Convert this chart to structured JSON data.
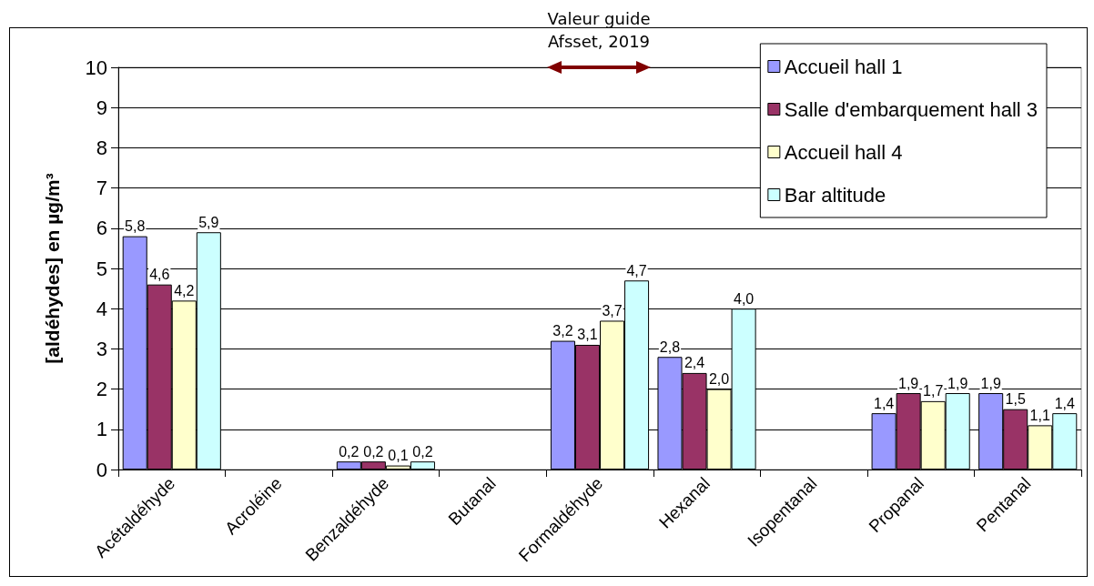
{
  "chart_data": {
    "type": "bar",
    "categories": [
      "Acétaldéhyde",
      "Acroléine",
      "Benzaldéhyde",
      "Butanal",
      "Formaldéhyde",
      "Hexanal",
      "Isopentanal",
      "Propanal",
      "Pentanal"
    ],
    "ylabel": "[aldéhydes] en µg/m³",
    "ylim": [
      0,
      10
    ],
    "yticks": [
      0,
      1,
      2,
      3,
      4,
      5,
      6,
      7,
      8,
      9,
      10
    ],
    "grid": "y",
    "legend": "top right",
    "annotations": [
      "Valeur guide\nAfsset, 2019"
    ],
    "series": [
      {
        "name": "Accueil hall 1",
        "color": "#9999ff",
        "values": [
          5.8,
          null,
          0.2,
          null,
          3.2,
          2.8,
          null,
          1.4,
          1.9
        ],
        "value_labels": [
          "5,8",
          null,
          "0,2",
          null,
          "3,2",
          "2,8",
          null,
          "1,4",
          "1,9"
        ]
      },
      {
        "name": "Salle d'embarquement hall 3",
        "color": "#993366",
        "values": [
          4.6,
          null,
          0.2,
          null,
          3.1,
          2.4,
          null,
          1.9,
          1.5
        ],
        "value_labels": [
          "4,6",
          null,
          "0,2",
          null,
          "3,1",
          "2,4",
          null,
          "1,9",
          "1,5"
        ]
      },
      {
        "name": "Accueil hall 4",
        "color": "#ffffcc",
        "values": [
          4.2,
          null,
          0.1,
          null,
          3.7,
          2.0,
          null,
          1.7,
          1.1
        ],
        "value_labels": [
          "4,2",
          null,
          "0,1",
          null,
          "3,7",
          "2,0",
          null,
          "1,7",
          "1,1"
        ]
      },
      {
        "name": "Bar altitude",
        "color": "#ccffff",
        "values": [
          5.9,
          null,
          0.2,
          null,
          4.7,
          4.0,
          null,
          1.9,
          1.4
        ],
        "value_labels": [
          "5,9",
          null,
          "0,2",
          null,
          "4,7",
          "4,0",
          null,
          "1,9",
          "1,4"
        ]
      }
    ]
  }
}
